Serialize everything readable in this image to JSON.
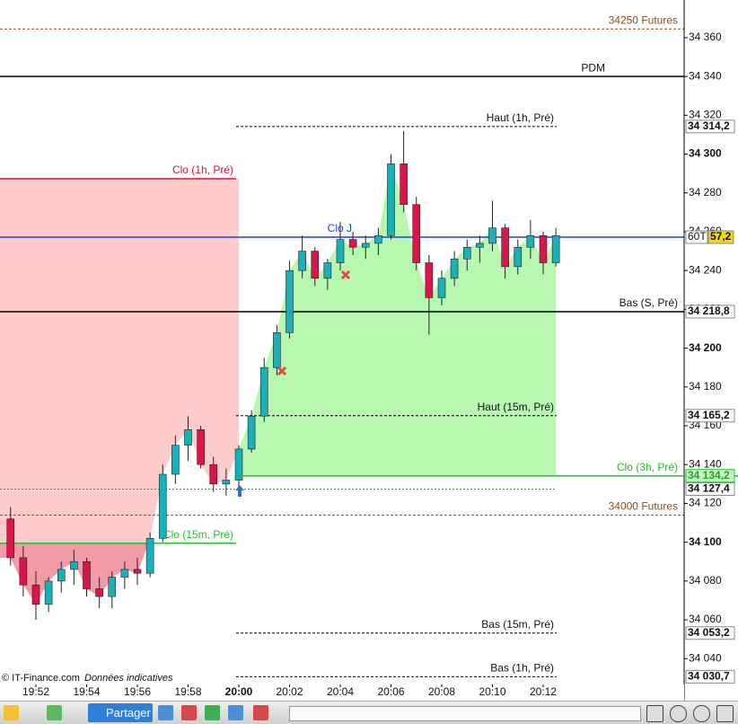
{
  "chart_data": {
    "type": "candlestick",
    "categories": [
      null,
      null,
      "19:52",
      null,
      null,
      null,
      "19:54",
      null,
      null,
      null,
      "19:56",
      null,
      null,
      null,
      "19:58",
      null,
      null,
      null,
      "20:00",
      null,
      null,
      null,
      "20:02",
      null,
      null,
      null,
      "20:04",
      null,
      null,
      null,
      "20:06",
      null,
      null,
      null,
      "20:08",
      null,
      null,
      null,
      "20:10",
      null,
      null,
      null,
      "20:12",
      null
    ],
    "open": [
      34112,
      34092,
      34078,
      34068,
      34080,
      34086,
      34090,
      34076,
      34072,
      34082,
      34086,
      34084,
      34102,
      34135,
      34150,
      34158,
      34140,
      34130,
      34132,
      34148,
      34165,
      34190,
      34208,
      34240,
      34250,
      34236,
      34244,
      34256,
      34252,
      34254,
      34258,
      34295,
      34274,
      34244,
      34226,
      34236,
      34246,
      34252,
      34254,
      34262,
      34242,
      34252,
      34258,
      34244
    ],
    "high": [
      34118,
      34098,
      34085,
      34082,
      34090,
      34096,
      34092,
      34082,
      34085,
      34090,
      34092,
      34105,
      34140,
      34155,
      34165,
      34160,
      34144,
      34138,
      34150,
      34168,
      34195,
      34212,
      34245,
      34258,
      34252,
      34246,
      34265,
      34260,
      34258,
      34262,
      34300,
      34312,
      34278,
      34248,
      34240,
      34250,
      34256,
      34258,
      34276,
      34264,
      34256,
      34266,
      34260,
      34262
    ],
    "low": [
      34088,
      34072,
      34060,
      34064,
      34074,
      34078,
      34072,
      34066,
      34066,
      34076,
      34078,
      34082,
      34100,
      34130,
      34142,
      34138,
      34126,
      34124,
      34128,
      34146,
      34162,
      34186,
      34205,
      34236,
      34232,
      34230,
      34240,
      34248,
      34246,
      34248,
      34256,
      34270,
      34240,
      34207,
      34222,
      34232,
      34240,
      34244,
      34250,
      34236,
      34238,
      34246,
      34238,
      34242
    ],
    "close": [
      34092,
      34078,
      34068,
      34080,
      34086,
      34090,
      34076,
      34072,
      34082,
      34086,
      34084,
      34102,
      34135,
      34150,
      34158,
      34140,
      34130,
      34132,
      34148,
      34165,
      34190,
      34208,
      34240,
      34250,
      34236,
      34244,
      34256,
      34252,
      34254,
      34258,
      34295,
      34274,
      34244,
      34226,
      34236,
      34246,
      34252,
      34254,
      34262,
      34242,
      34252,
      34258,
      34244,
      34258
    ],
    "up_color": "#1ab0b8",
    "down_color": "#d8164a",
    "ylim": [
      34026.7,
      34379.4
    ],
    "yticks": [
      {
        "value": 34360,
        "label": "34 360"
      },
      {
        "value": 34340,
        "label": "34 340"
      },
      {
        "value": 34320,
        "label": "34 320"
      },
      {
        "value": 34300,
        "label": "34 300"
      },
      {
        "value": 34280,
        "label": "34 280"
      },
      {
        "value": 34260,
        "label": "34 260"
      },
      {
        "value": 34240,
        "label": "34 240"
      },
      {
        "value": 34220,
        "label": "34 220"
      },
      {
        "value": 34200,
        "label": "34 200"
      },
      {
        "value": 34180,
        "label": "34 180"
      },
      {
        "value": 34160,
        "label": "34 160"
      },
      {
        "value": 34140,
        "label": "34 140"
      },
      {
        "value": 34120,
        "label": "34 120"
      },
      {
        "value": 34100,
        "label": "34 100"
      },
      {
        "value": 34080,
        "label": "34 080"
      },
      {
        "value": 34060,
        "label": "34 060"
      },
      {
        "value": 34040,
        "label": "34 040"
      }
    ],
    "levels": [
      {
        "label": "34250 Futures",
        "value": 34364.5,
        "color": "#8b4a1c",
        "dash": true
      },
      {
        "label": "PDM",
        "value": 34340,
        "color": "#000000",
        "dash": false
      },
      {
        "label": "Haut (1h, Pré)",
        "value": 34314.2,
        "color": "#000000",
        "dash": true,
        "tag": "34 314,2"
      },
      {
        "label": "Clo (1h, Pré)",
        "value": 34287.3,
        "color": "#e0103a",
        "dash": false
      },
      {
        "label": "Clo J",
        "value": 34257.2,
        "color": "#1c3fd6",
        "dash": false,
        "tag_prefix": "60T",
        "tag": "57,2"
      },
      {
        "label": "Bas (S, Pré)",
        "value": 34218.8,
        "color": "#000000",
        "dash": false,
        "tag": "34 218,8"
      },
      {
        "label": "Haut (15m, Pré)",
        "value": 34165.2,
        "color": "#000000",
        "dash": true,
        "tag": "34 165,2"
      },
      {
        "label": "Clo (3h, Pré)",
        "value": 34134.2,
        "color": "#22c02a",
        "dash": false,
        "tag": "34 134,2"
      },
      {
        "value": 34127.4,
        "color": "#777777",
        "dash": true,
        "tag": "34 127,4"
      },
      {
        "label": "34000 Futures",
        "value": 34114,
        "color": "#8b4a1c",
        "dash": true
      },
      {
        "label": "Clo (15m, Pré)",
        "value": 34099.5,
        "color": "#22c02a",
        "dash": false
      },
      {
        "label": "Bas (15m, Pré)",
        "value": 34053.2,
        "color": "#000000",
        "dash": true,
        "tag": "34 053,2"
      },
      {
        "label": "Bas (1h, Pré)",
        "value": 34030.7,
        "color": "#000000",
        "dash": true,
        "tag": "34 030,7"
      }
    ]
  },
  "footer": {
    "source": "© IT-Finance.com",
    "note": "Données indicatives"
  },
  "toolbar": {
    "share": "Partager"
  }
}
